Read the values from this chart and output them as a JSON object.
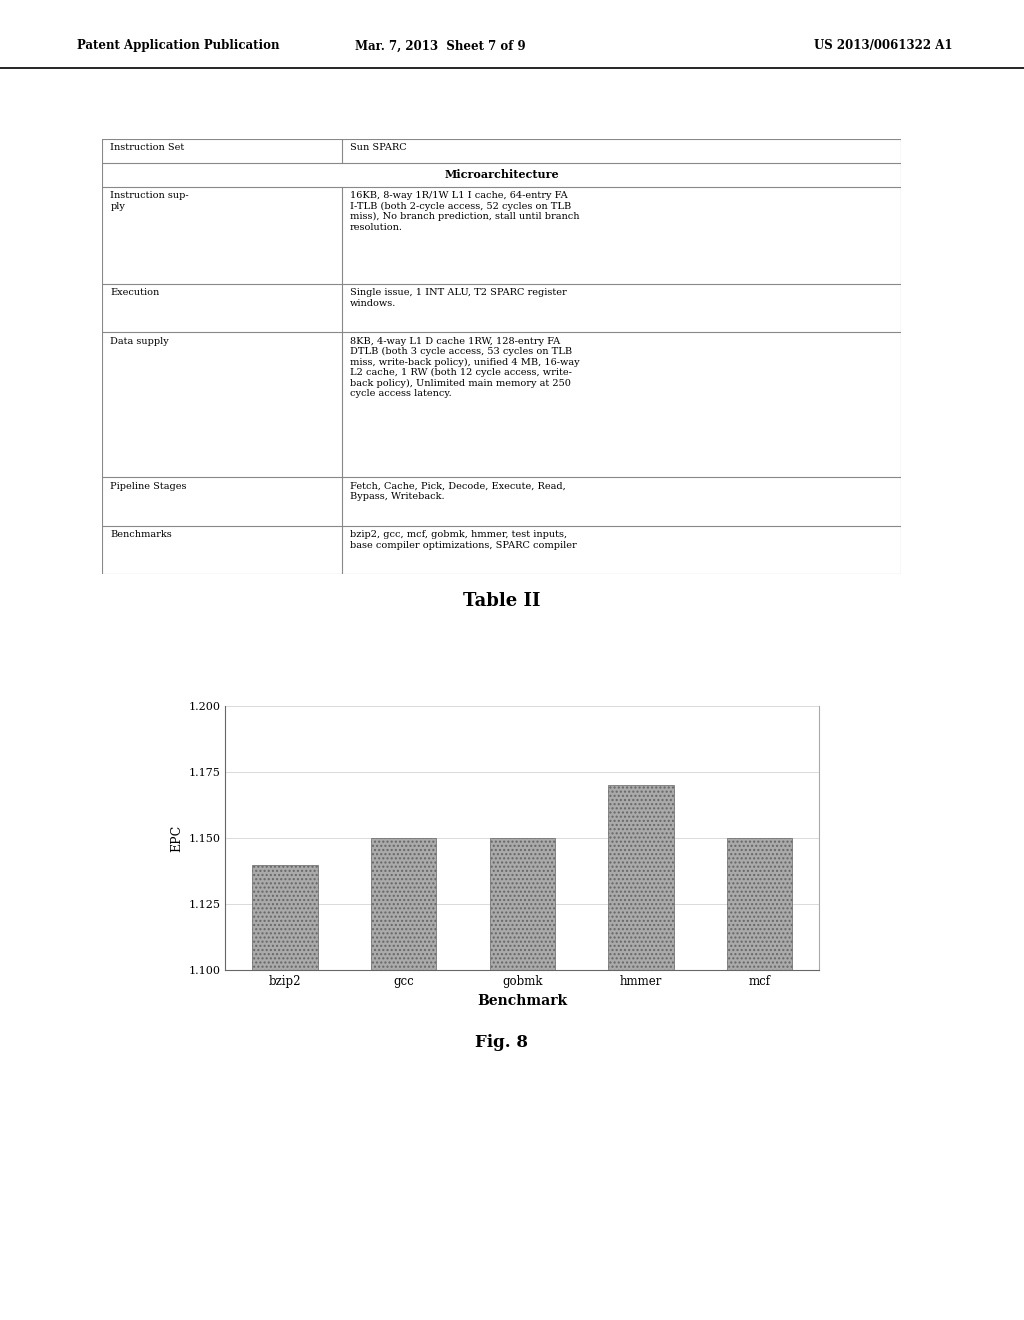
{
  "header_left": "Patent Application Publication",
  "header_mid": "Mar. 7, 2013  Sheet 7 of 9",
  "header_right": "US 2013/0061322 A1",
  "table_title": "Table II",
  "fig_label": "Fig. 8",
  "rows": [
    {
      "label": "Instruction Set",
      "value": "Sun SPARC",
      "nlines": 1,
      "header": false
    },
    {
      "label": "",
      "value": "Microarchitecture",
      "nlines": 1,
      "header": true
    },
    {
      "label": "Instruction sup-\nply",
      "value": "16KB, 8-way 1R/1W L1 I cache, 64-entry FA\nI-TLB (both 2-cycle access, 52 cycles on TLB\nmiss), No branch prediction, stall until branch\nresolution.",
      "nlines": 4,
      "header": false
    },
    {
      "label": "Execution",
      "value": "Single issue, 1 INT ALU, T2 SPARC register\nwindows.",
      "nlines": 2,
      "header": false
    },
    {
      "label": "Data supply",
      "value": "8KB, 4-way L1 D cache 1RW, 128-entry FA\nDTLB (both 3 cycle access, 53 cycles on TLB\nmiss, write-back policy), unified 4 MB, 16-way\nL2 cache, 1 RW (both 12 cycle access, write-\nback policy), Unlimited main memory at 250\ncycle access latency.",
      "nlines": 6,
      "header": false
    },
    {
      "label": "Pipeline Stages",
      "value": "Fetch, Cache, Pick, Decode, Execute, Read,\nBypass, Writeback.",
      "nlines": 2,
      "header": false
    },
    {
      "label": "Benchmarks",
      "value": "bzip2, gcc, mcf, gobmk, hmmer, test inputs,\nbase compiler optimizations, SPARC compiler",
      "nlines": 2,
      "header": false
    }
  ],
  "bar_categories": [
    "bzip2",
    "gcc",
    "gobmk",
    "hmmer",
    "mcf"
  ],
  "bar_values": [
    1.14,
    1.15,
    1.15,
    1.17,
    1.15
  ],
  "bar_color": "#aaaaaa",
  "bar_hatch": "....",
  "ylabel": "EPC",
  "xlabel": "Benchmark",
  "ylim_min": 1.1,
  "ylim_max": 1.2,
  "yticks": [
    1.1,
    1.125,
    1.15,
    1.175,
    1.2
  ],
  "background_color": "#ffffff"
}
